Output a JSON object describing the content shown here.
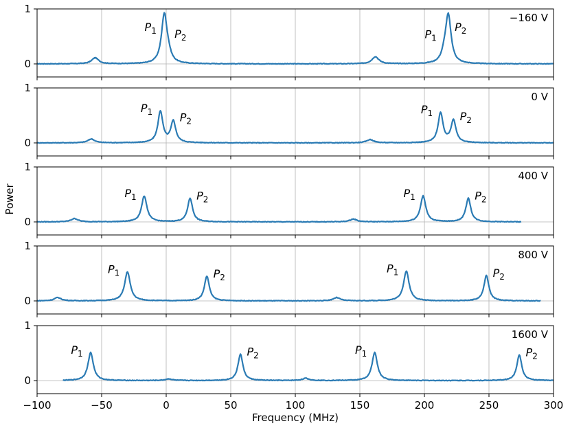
{
  "chart_data": {
    "type": "line",
    "xlabel": "Frequency (MHz)",
    "ylabel": "Power",
    "xlim": [
      -100,
      300
    ],
    "ylim": [
      0,
      1
    ],
    "x_ticks": [
      -100,
      -50,
      0,
      50,
      100,
      150,
      200,
      250,
      300
    ],
    "x_tick_labels": [
      "−100",
      "−50",
      "0",
      "50",
      "100",
      "150",
      "200",
      "250",
      "300"
    ],
    "y_ticks": [
      0,
      1
    ],
    "y_tick_labels": [
      "0",
      "1"
    ],
    "vertical_grid": true,
    "line_color": "#2b7bb4",
    "panels": [
      {
        "voltage_label": "−160 V",
        "x_range": [
          -100,
          300
        ],
        "peaks": [
          {
            "label": "P",
            "sub": "1",
            "x": -1.5,
            "height": 0.88,
            "width": 2.6
          },
          {
            "label": "P",
            "sub": "2",
            "x": 1.5,
            "height": 0.12,
            "width": 2.6
          },
          {
            "label": "P",
            "sub": "1",
            "x": 215.5,
            "height": 0.12,
            "width": 2.6
          },
          {
            "label": "P",
            "sub": "2",
            "x": 218.5,
            "height": 0.87,
            "width": 2.6
          }
        ],
        "bumps": [
          {
            "x": -55,
            "height": 0.11
          },
          {
            "x": 162,
            "height": 0.13
          }
        ]
      },
      {
        "voltage_label": "0 V",
        "x_range": [
          -100,
          300
        ],
        "peaks": [
          {
            "label": "P",
            "sub": "1",
            "x": -4.5,
            "height": 0.57,
            "width": 2.3
          },
          {
            "label": "P",
            "sub": "2",
            "x": 5.5,
            "height": 0.39,
            "width": 2.3
          },
          {
            "label": "P",
            "sub": "1",
            "x": 212.5,
            "height": 0.54,
            "width": 2.3
          },
          {
            "label": "P",
            "sub": "2",
            "x": 222.5,
            "height": 0.41,
            "width": 2.3
          }
        ],
        "bumps": [
          {
            "x": -58,
            "height": 0.07
          },
          {
            "x": 158,
            "height": 0.06
          }
        ]
      },
      {
        "voltage_label": "400 V",
        "x_range": [
          -100,
          275
        ],
        "peaks": [
          {
            "label": "P",
            "sub": "1",
            "x": -17,
            "height": 0.47,
            "width": 2.5
          },
          {
            "label": "P",
            "sub": "2",
            "x": 18.5,
            "height": 0.43,
            "width": 2.3
          },
          {
            "label": "P",
            "sub": "1",
            "x": 199,
            "height": 0.47,
            "width": 2.5
          },
          {
            "label": "P",
            "sub": "2",
            "x": 234,
            "height": 0.43,
            "width": 2.3
          }
        ],
        "bumps": [
          {
            "x": -71,
            "height": 0.06
          },
          {
            "x": 145,
            "height": 0.05
          }
        ]
      },
      {
        "voltage_label": "800 V",
        "x_range": [
          -100,
          290
        ],
        "peaks": [
          {
            "label": "P",
            "sub": "1",
            "x": -30,
            "height": 0.53,
            "width": 2.6
          },
          {
            "label": "P",
            "sub": "2",
            "x": 31.5,
            "height": 0.45,
            "width": 2.3
          },
          {
            "label": "P",
            "sub": "1",
            "x": 186,
            "height": 0.54,
            "width": 2.6
          },
          {
            "label": "P",
            "sub": "2",
            "x": 248,
            "height": 0.46,
            "width": 2.3
          }
        ],
        "bumps": [
          {
            "x": -84,
            "height": 0.06
          },
          {
            "x": 132,
            "height": 0.06
          }
        ]
      },
      {
        "voltage_label": "1600 V",
        "x_range": [
          -80,
          300
        ],
        "peaks": [
          {
            "label": "P",
            "sub": "1",
            "x": -58.5,
            "height": 0.51,
            "width": 2.5
          },
          {
            "label": "P",
            "sub": "2",
            "x": 57.5,
            "height": 0.48,
            "width": 2.3
          },
          {
            "label": "P",
            "sub": "1",
            "x": 161.5,
            "height": 0.51,
            "width": 2.5
          },
          {
            "label": "P",
            "sub": "2",
            "x": 273.5,
            "height": 0.47,
            "width": 2.3
          }
        ],
        "bumps": [
          {
            "x": 2,
            "height": 0.03
          },
          {
            "x": 108,
            "height": 0.04
          }
        ]
      }
    ]
  }
}
